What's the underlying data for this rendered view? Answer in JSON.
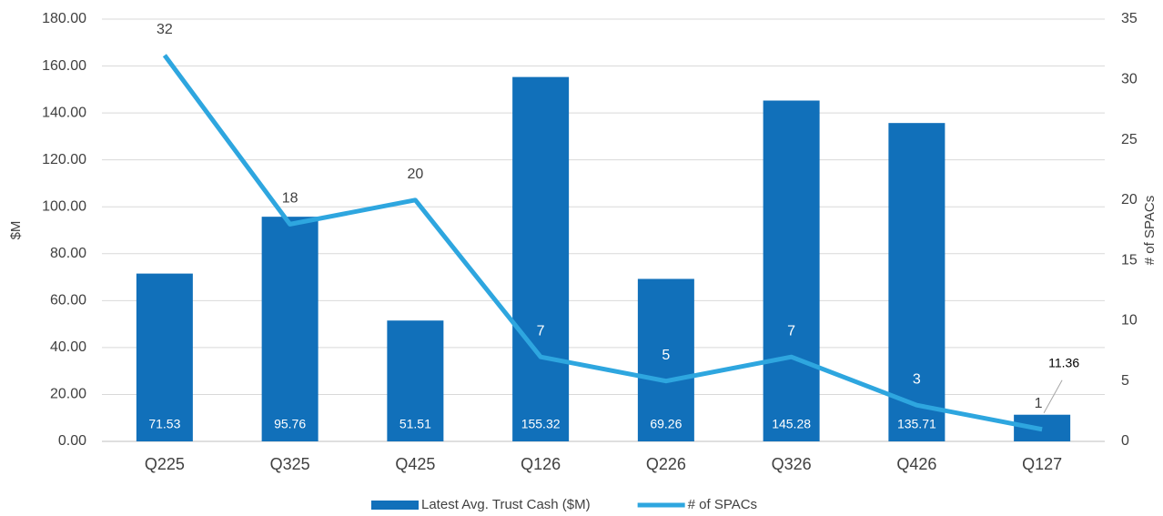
{
  "chart_data": {
    "type": "bar",
    "categories": [
      "Q225",
      "Q325",
      "Q425",
      "Q126",
      "Q226",
      "Q326",
      "Q426",
      "Q127"
    ],
    "series": [
      {
        "name": "Latest Avg. Trust Cash ($M)",
        "type": "bar",
        "color": "#1170ba",
        "values": [
          71.53,
          95.76,
          51.51,
          155.32,
          69.26,
          145.28,
          135.71,
          11.36
        ]
      },
      {
        "name": "# of SPACs",
        "type": "line",
        "axis": "y2",
        "color": "#2ea6df",
        "values": [
          32,
          18,
          20,
          7,
          5,
          7,
          3,
          1
        ]
      }
    ],
    "ylabel": "$M",
    "y2label": "# of SPACs",
    "ylim": [
      0,
      180
    ],
    "yticks": [
      {
        "value": 0,
        "label": "0.00"
      },
      {
        "value": 20,
        "label": "20.00"
      },
      {
        "value": 40,
        "label": "40.00"
      },
      {
        "value": 60,
        "label": "60.00"
      },
      {
        "value": 80,
        "label": "80.00"
      },
      {
        "value": 100,
        "label": "100.00"
      },
      {
        "value": 120,
        "label": "120.00"
      },
      {
        "value": 140,
        "label": "140.00"
      },
      {
        "value": 160,
        "label": "160.00"
      },
      {
        "value": 180,
        "label": "180.00"
      }
    ],
    "y2lim": [
      0,
      35
    ],
    "y2ticks": [
      0,
      5,
      10,
      15,
      20,
      25,
      30,
      35
    ],
    "grid": true,
    "legend": "bottom"
  }
}
